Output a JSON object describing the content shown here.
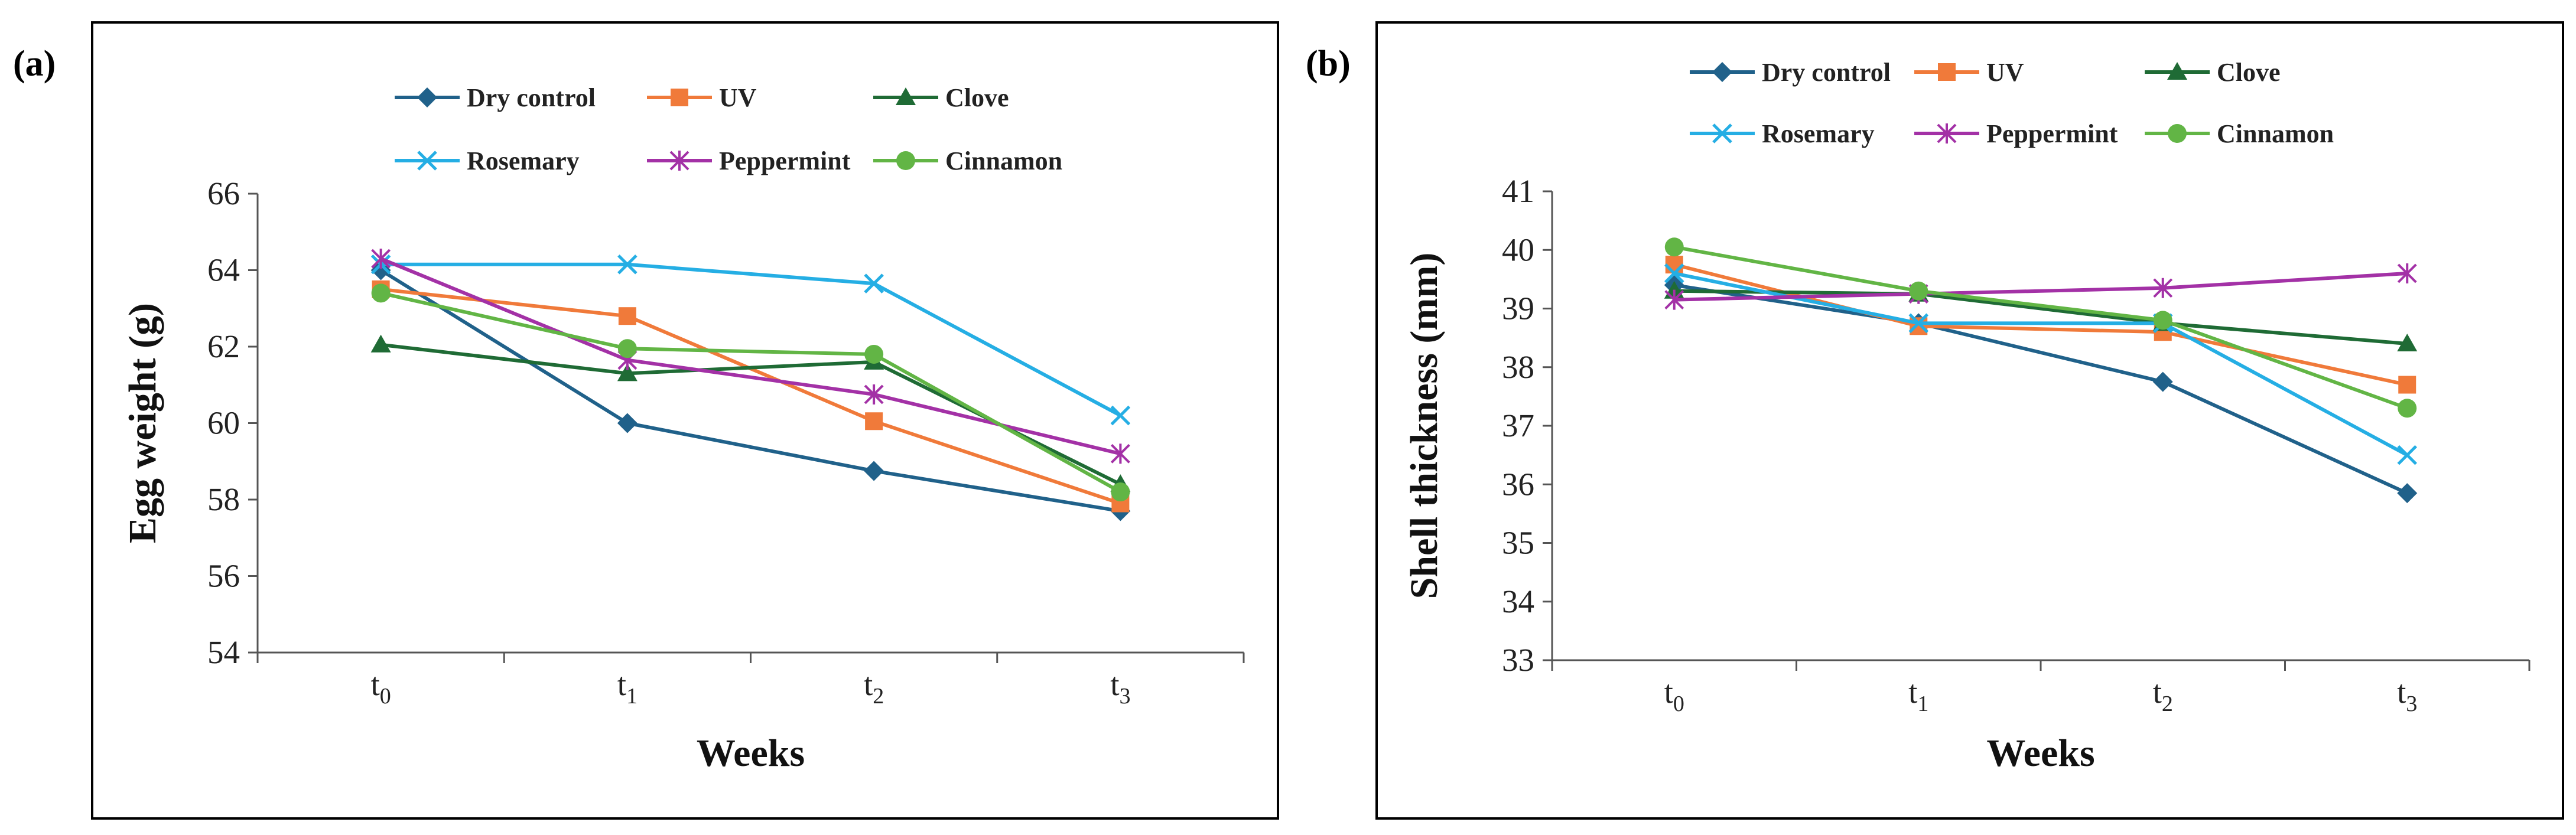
{
  "chart_data": [
    {
      "type": "line",
      "panel_label": "(a)",
      "xlabel": "Weeks",
      "ylabel": "Egg weight (g)",
      "categories": [
        {
          "base": "t",
          "sub": "0"
        },
        {
          "base": "t",
          "sub": "1"
        },
        {
          "base": "t",
          "sub": "2"
        },
        {
          "base": "t",
          "sub": "3"
        }
      ],
      "ylim": [
        54,
        66
      ],
      "yticks": [
        54,
        56,
        58,
        60,
        62,
        64,
        66
      ],
      "grid": false,
      "legend_position": "top",
      "series": [
        {
          "name": "Dry control",
          "color": "#20618a",
          "marker": "diamond",
          "values": [
            64.0,
            60.0,
            58.75,
            57.7
          ]
        },
        {
          "name": "UV",
          "color": "#f07a3a",
          "marker": "square",
          "values": [
            63.5,
            62.8,
            60.05,
            57.9
          ]
        },
        {
          "name": "Clove",
          "color": "#1f6b35",
          "marker": "triangle",
          "values": [
            62.05,
            61.3,
            61.6,
            58.4
          ]
        },
        {
          "name": "Rosemary",
          "color": "#25aee4",
          "marker": "x",
          "values": [
            64.15,
            64.15,
            63.65,
            60.2
          ]
        },
        {
          "name": "Peppermint",
          "color": "#a331a6",
          "marker": "star",
          "values": [
            64.3,
            61.65,
            60.75,
            59.2
          ]
        },
        {
          "name": "Cinnamon",
          "color": "#62b545",
          "marker": "circle",
          "values": [
            63.4,
            61.95,
            61.8,
            58.2
          ]
        }
      ]
    },
    {
      "type": "line",
      "panel_label": "(b)",
      "xlabel": "Weeks",
      "ylabel": "Shell thickness (mm)",
      "categories": [
        {
          "base": "t",
          "sub": "0"
        },
        {
          "base": "t",
          "sub": "1"
        },
        {
          "base": "t",
          "sub": "2"
        },
        {
          "base": "t",
          "sub": "3"
        }
      ],
      "ylim": [
        33,
        41
      ],
      "yticks": [
        33,
        34,
        35,
        36,
        37,
        38,
        39,
        40,
        41
      ],
      "grid": false,
      "legend_position": "top",
      "series": [
        {
          "name": "Dry control",
          "color": "#20618a",
          "marker": "diamond",
          "values": [
            39.4,
            38.75,
            37.75,
            35.85
          ]
        },
        {
          "name": "UV",
          "color": "#f07a3a",
          "marker": "square",
          "values": [
            39.75,
            38.7,
            38.6,
            37.7
          ]
        },
        {
          "name": "Clove",
          "color": "#1f6b35",
          "marker": "triangle",
          "values": [
            39.3,
            39.25,
            38.75,
            38.4
          ]
        },
        {
          "name": "Rosemary",
          "color": "#25aee4",
          "marker": "x",
          "values": [
            39.6,
            38.75,
            38.75,
            36.5
          ]
        },
        {
          "name": "Peppermint",
          "color": "#a331a6",
          "marker": "star",
          "values": [
            39.15,
            39.25,
            39.35,
            39.6
          ]
        },
        {
          "name": "Cinnamon",
          "color": "#62b545",
          "marker": "circle",
          "values": [
            40.05,
            39.3,
            38.8,
            37.3
          ]
        }
      ]
    }
  ]
}
